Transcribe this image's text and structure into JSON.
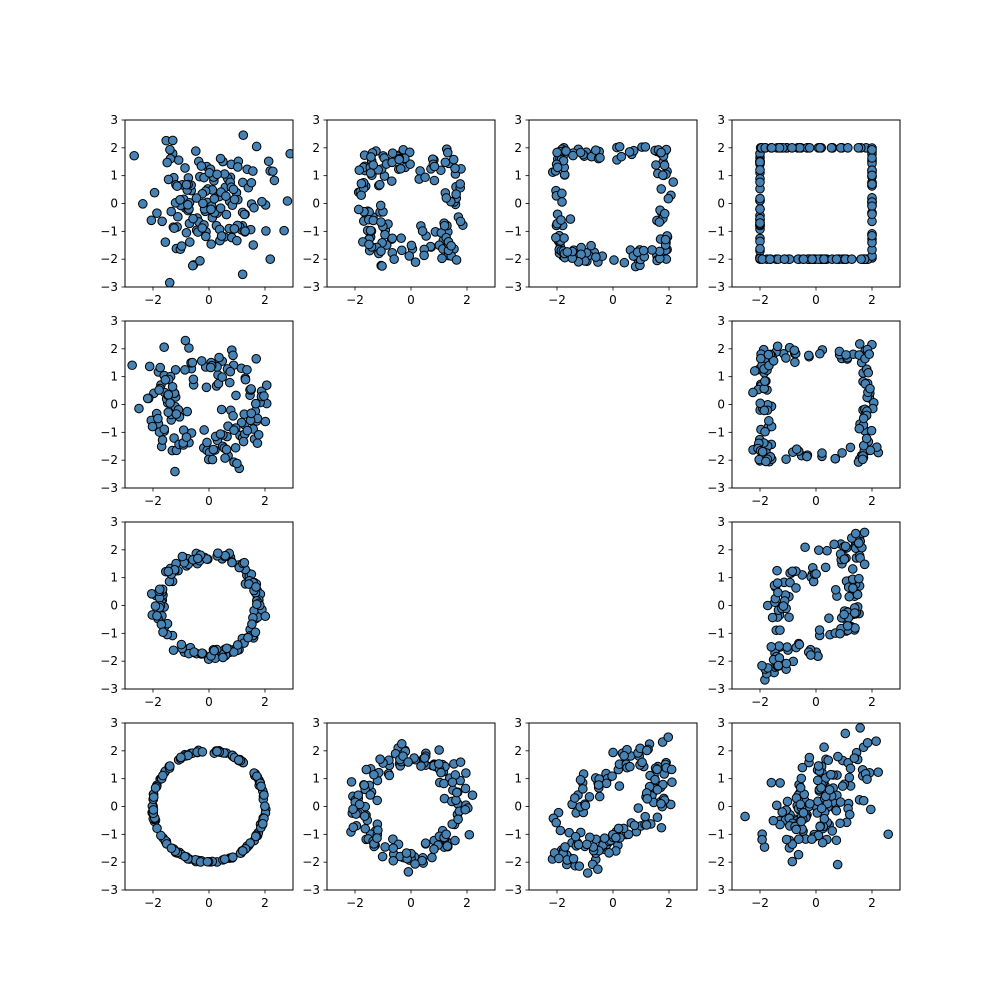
{
  "figure": {
    "background": "#ffffff"
  },
  "style": {
    "marker_fill": "#4682b4",
    "marker_edge": "#000000"
  },
  "chart_data": [
    {
      "id": "p00",
      "row": 0,
      "col": 0,
      "type": "scatter",
      "shape": "gaussian",
      "seed": 11,
      "n": 150,
      "xlim": [
        -3,
        3
      ],
      "ylim": [
        -3,
        3
      ],
      "xticks": [
        -2,
        0,
        2
      ],
      "yticks": [
        -3,
        -2,
        -1,
        0,
        1,
        2,
        3
      ]
    },
    {
      "id": "p01",
      "row": 0,
      "col": 1,
      "type": "scatter",
      "shape": "cross",
      "seed": 12,
      "n": 150,
      "xlim": [
        -3,
        3
      ],
      "ylim": [
        -3,
        3
      ],
      "xticks": [
        -2,
        0,
        2
      ],
      "yticks": [
        -3,
        -2,
        -1,
        0,
        1,
        2,
        3
      ]
    },
    {
      "id": "p02",
      "row": 0,
      "col": 2,
      "type": "scatter",
      "shape": "square-noisy",
      "seed": 13,
      "n": 150,
      "xlim": [
        -3,
        3
      ],
      "ylim": [
        -3,
        3
      ],
      "xticks": [
        -2,
        0,
        2
      ],
      "yticks": [
        -3,
        -2,
        -1,
        0,
        1,
        2,
        3
      ]
    },
    {
      "id": "p03",
      "row": 0,
      "col": 3,
      "type": "scatter",
      "shape": "square",
      "seed": 14,
      "n": 150,
      "xlim": [
        -3,
        3
      ],
      "ylim": [
        -3,
        3
      ],
      "xticks": [
        -2,
        0,
        2
      ],
      "yticks": [
        -3,
        -2,
        -1,
        0,
        1,
        2,
        3
      ]
    },
    {
      "id": "p10",
      "row": 1,
      "col": 0,
      "type": "scatter",
      "shape": "ring-noisy",
      "seed": 21,
      "n": 150,
      "xlim": [
        -3,
        3
      ],
      "ylim": [
        -3,
        3
      ],
      "xticks": [
        -2,
        0,
        2
      ],
      "yticks": [
        -3,
        -2,
        -1,
        0,
        1,
        2,
        3
      ]
    },
    {
      "id": "p13",
      "row": 1,
      "col": 3,
      "type": "scatter",
      "shape": "square-noisy",
      "seed": 24,
      "n": 150,
      "xlim": [
        -3,
        3
      ],
      "ylim": [
        -3,
        3
      ],
      "xticks": [
        -2,
        0,
        2
      ],
      "yticks": [
        -3,
        -2,
        -1,
        0,
        1,
        2,
        3
      ]
    },
    {
      "id": "p20",
      "row": 2,
      "col": 0,
      "type": "scatter",
      "shape": "ring",
      "seed": 31,
      "n": 150,
      "xlim": [
        -3,
        3
      ],
      "ylim": [
        -3,
        3
      ],
      "xticks": [
        -2,
        0,
        2
      ],
      "yticks": [
        -3,
        -2,
        -1,
        0,
        1,
        2,
        3
      ]
    },
    {
      "id": "p23",
      "row": 2,
      "col": 3,
      "type": "scatter",
      "shape": "cross-diag",
      "seed": 34,
      "n": 150,
      "xlim": [
        -3,
        3
      ],
      "ylim": [
        -3,
        3
      ],
      "xticks": [
        -2,
        0,
        2
      ],
      "yticks": [
        -3,
        -2,
        -1,
        0,
        1,
        2,
        3
      ]
    },
    {
      "id": "p30",
      "row": 3,
      "col": 0,
      "type": "scatter",
      "shape": "circle",
      "seed": 41,
      "n": 150,
      "xlim": [
        -3,
        3
      ],
      "ylim": [
        -3,
        3
      ],
      "xticks": [
        -2,
        0,
        2
      ],
      "yticks": [
        -3,
        -2,
        -1,
        0,
        1,
        2,
        3
      ]
    },
    {
      "id": "p31",
      "row": 3,
      "col": 1,
      "type": "scatter",
      "shape": "ring-mid",
      "seed": 42,
      "n": 150,
      "xlim": [
        -3,
        3
      ],
      "ylim": [
        -3,
        3
      ],
      "xticks": [
        -2,
        0,
        2
      ],
      "yticks": [
        -3,
        -2,
        -1,
        0,
        1,
        2,
        3
      ]
    },
    {
      "id": "p32",
      "row": 3,
      "col": 2,
      "type": "scatter",
      "shape": "ring-diag",
      "seed": 43,
      "n": 150,
      "xlim": [
        -3,
        3
      ],
      "ylim": [
        -3,
        3
      ],
      "xticks": [
        -2,
        0,
        2
      ],
      "yticks": [
        -3,
        -2,
        -1,
        0,
        1,
        2,
        3
      ]
    },
    {
      "id": "p33",
      "row": 3,
      "col": 3,
      "type": "scatter",
      "shape": "gaussian-diag",
      "seed": 44,
      "n": 150,
      "xlim": [
        -3,
        3
      ],
      "ylim": [
        -3,
        3
      ],
      "xticks": [
        -2,
        0,
        2
      ],
      "yticks": [
        -3,
        -2,
        -1,
        0,
        1,
        2,
        3
      ]
    }
  ]
}
